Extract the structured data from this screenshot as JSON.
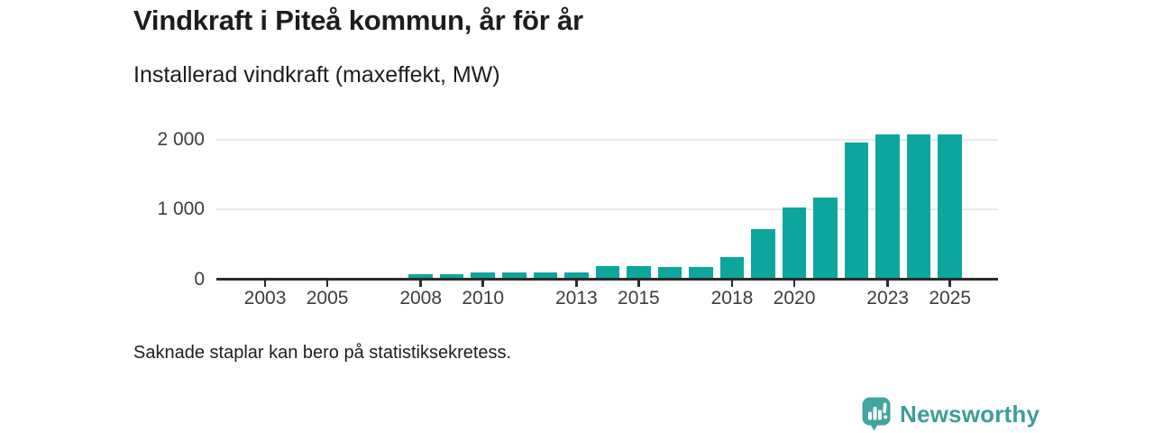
{
  "chart_data": {
    "type": "bar",
    "title": "Vindkraft i Piteå kommun, år för år",
    "subtitle": "Installerad vindkraft (maxeffekt, MW)",
    "footnote": "Saknade staplar kan bero på statistiksekretess.",
    "unit": "MW",
    "categories": [
      2002,
      2003,
      2004,
      2005,
      2006,
      2007,
      2008,
      2009,
      2010,
      2011,
      2012,
      2013,
      2014,
      2015,
      2016,
      2017,
      2018,
      2019,
      2020,
      2021,
      2022,
      2023,
      2024,
      2025
    ],
    "values": [
      null,
      null,
      null,
      null,
      null,
      null,
      75,
      75,
      100,
      100,
      100,
      100,
      190,
      190,
      175,
      175,
      320,
      720,
      1020,
      1170,
      1955,
      2075,
      2075,
      2075
    ],
    "x_tick_labels": [
      "2003",
      "2005",
      "2008",
      "2010",
      "2013",
      "2015",
      "2018",
      "2020",
      "2023",
      "2025"
    ],
    "y_ticks": [
      {
        "label": "0",
        "value": 0
      },
      {
        "label": "1 000",
        "value": 1000
      },
      {
        "label": "2 000",
        "value": 2000
      }
    ],
    "ylim": [
      0,
      2200
    ],
    "grid": "horizontal",
    "bar_color": "#0da69e",
    "axis_color": "#2b2b2b",
    "gridline_color": "#e8e8e8"
  },
  "branding": {
    "logo_text": "Newsworthy",
    "logo_color": "#3b9e9a",
    "logo_bubble_color": "#41a5a0"
  }
}
